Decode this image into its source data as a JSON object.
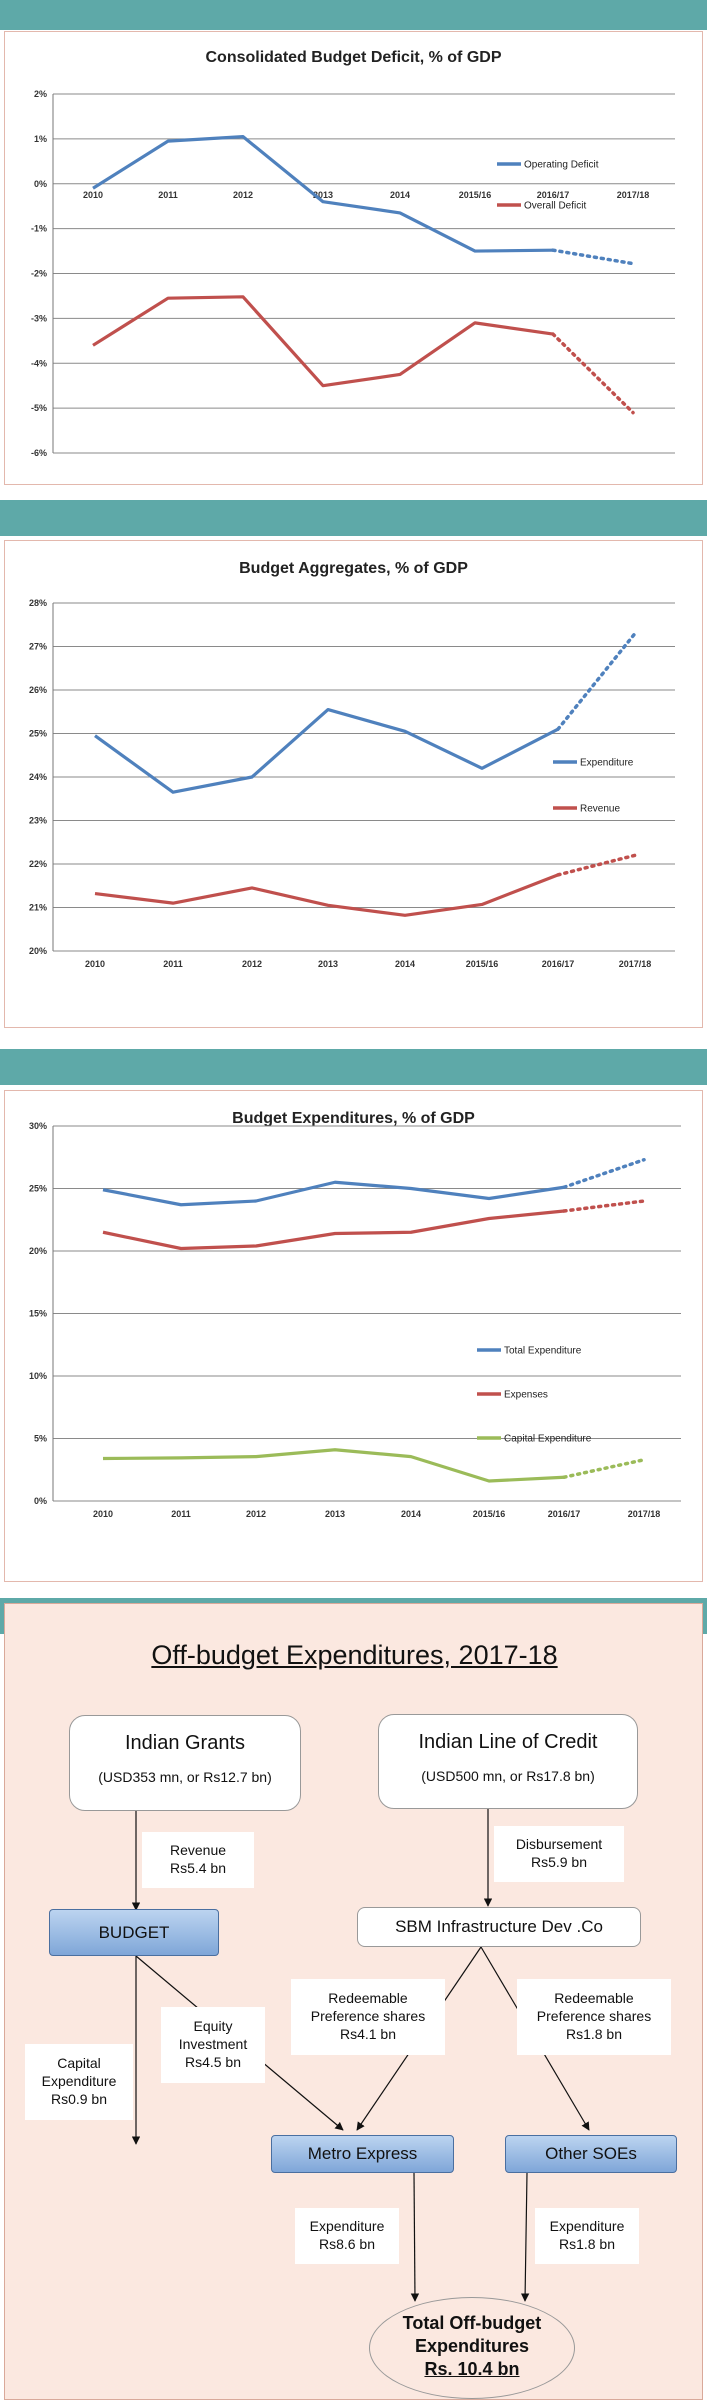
{
  "colors": {
    "band": "#5ea9a8",
    "blue": "#4f81bd",
    "red": "#c0504d",
    "green": "#9bbb59",
    "flow_bg": "#fbe8e0"
  },
  "chart_data": [
    {
      "type": "line",
      "title": "Consolidated Budget Deficit, % of GDP",
      "categories": [
        "2010",
        "2011",
        "2012",
        "2013",
        "2014",
        "2015/16",
        "2016/17",
        "2017/18"
      ],
      "ylim": [
        -6,
        2
      ],
      "yticks": [
        "-6%",
        "-5%",
        "-4%",
        "-3%",
        "-2%",
        "-1%",
        "0%",
        "1%",
        "2%"
      ],
      "series": [
        {
          "name": "Operating Deficit",
          "color": "#4f81bd",
          "values": [
            -0.1,
            0.95,
            1.05,
            -0.4,
            -0.65,
            -1.5,
            -1.48,
            -1.78
          ],
          "projected_last": true
        },
        {
          "name": "Overall Deficit",
          "color": "#c0504d",
          "values": [
            -3.6,
            -2.55,
            -2.52,
            -4.5,
            -4.25,
            -3.1,
            -3.35,
            -5.1
          ],
          "projected_last": true
        }
      ],
      "grid": true,
      "legend": "right"
    },
    {
      "type": "line",
      "title": "Budget Aggregates, % of GDP",
      "categories": [
        "2010",
        "2011",
        "2012",
        "2013",
        "2014",
        "2015/16",
        "2016/17",
        "2017/18"
      ],
      "ylim": [
        20,
        28
      ],
      "yticks": [
        "20%",
        "21%",
        "22%",
        "23%",
        "24%",
        "25%",
        "26%",
        "27%",
        "28%"
      ],
      "series": [
        {
          "name": "Expenditure",
          "color": "#4f81bd",
          "values": [
            24.95,
            23.65,
            24.0,
            25.55,
            25.05,
            24.2,
            25.1,
            27.3
          ],
          "projected_last": true
        },
        {
          "name": "Revenue",
          "color": "#c0504d",
          "values": [
            21.32,
            21.1,
            21.45,
            21.05,
            20.82,
            21.07,
            21.75,
            22.2
          ],
          "projected_last": true
        }
      ],
      "grid": true,
      "legend": "right"
    },
    {
      "type": "line",
      "title": "Budget Expenditures, % of GDP",
      "categories": [
        "2010",
        "2011",
        "2012",
        "2013",
        "2014",
        "2015/16",
        "2016/17",
        "2017/18"
      ],
      "ylim": [
        0,
        30
      ],
      "yticks": [
        "0%",
        "5%",
        "10%",
        "15%",
        "20%",
        "25%",
        "30%"
      ],
      "series": [
        {
          "name": "Total Expenditure",
          "color": "#4f81bd",
          "values": [
            24.9,
            23.7,
            24.0,
            25.5,
            25.0,
            24.2,
            25.1,
            27.3
          ],
          "projected_last": true
        },
        {
          "name": "Expenses",
          "color": "#c0504d",
          "values": [
            21.5,
            20.2,
            20.4,
            21.4,
            21.5,
            22.6,
            23.2,
            24.0
          ],
          "projected_last": true
        },
        {
          "name": "Capital Expenditure",
          "color": "#9bbb59",
          "values": [
            3.4,
            3.45,
            3.55,
            4.1,
            3.55,
            1.6,
            1.9,
            3.3
          ],
          "projected_last": true
        }
      ],
      "grid": true,
      "legend": "right"
    }
  ],
  "flow": {
    "title": "Off-budget Expenditures, 2017-18",
    "indian_grants": {
      "title": "Indian Grants",
      "sub": "(USD353 mn, or Rs12.7 bn)"
    },
    "line_of_credit": {
      "title": "Indian Line of Credit",
      "sub": "(USD500 mn, or Rs17.8 bn)"
    },
    "budget": "BUDGET",
    "sbm": "SBM Infrastructure Dev .Co",
    "metro": "Metro Express",
    "other_soes": "Other SOEs",
    "total": {
      "line1": "Total Off-budget",
      "line2": "Expenditures",
      "line3": "Rs. 10.4 bn"
    },
    "revenue": {
      "line1": "Revenue",
      "line2": "Rs5.4 bn"
    },
    "disbursement": {
      "line1": "Disbursement",
      "line2": "Rs5.9 bn"
    },
    "capital_exp": {
      "line1": "Capital",
      "line2": "Expenditure",
      "line3": "Rs0.9 bn"
    },
    "equity": {
      "line1": "Equity",
      "line2": "Investment",
      "line3": "Rs4.5 bn"
    },
    "pref_metro": {
      "line1": "Redeemable",
      "line2": "Preference shares",
      "line3": "Rs4.1 bn"
    },
    "pref_soes": {
      "line1": "Redeemable",
      "line2": "Preference shares",
      "line3": "Rs1.8 bn"
    },
    "exp_metro": {
      "line1": "Expenditure",
      "line2": "Rs8.6 bn"
    },
    "exp_soes": {
      "line1": "Expenditure",
      "line2": "Rs1.8 bn"
    }
  }
}
